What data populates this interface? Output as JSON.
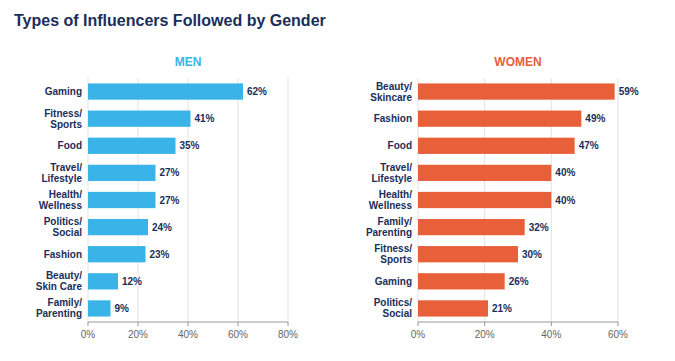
{
  "chart_data": [
    {
      "type": "bar",
      "orientation": "horizontal",
      "title": "Types of Influencers Followed by Gender",
      "subtitle": "MEN",
      "categories": [
        "Gaming",
        "Fitness/\nSports",
        "Food",
        "Travel/\nLifestyle",
        "Health/\nWellness",
        "Politics/\nSocial",
        "Fashion",
        "Beauty/\nSkin Care",
        "Family/\nParenting"
      ],
      "values": [
        62,
        41,
        35,
        27,
        27,
        24,
        23,
        12,
        9
      ],
      "value_labels": [
        "62%",
        "41%",
        "35%",
        "27%",
        "27%",
        "24%",
        "23%",
        "12%",
        "9%"
      ],
      "data_labels": true,
      "color": "#3ab4e8",
      "xlim": [
        0,
        80
      ],
      "xticks": [
        {
          "value": 0,
          "label": "0%"
        },
        {
          "value": 20,
          "label": "20%"
        },
        {
          "value": 40,
          "label": "40%"
        },
        {
          "value": 60,
          "label": "60%"
        },
        {
          "value": 80,
          "label": "80%"
        }
      ],
      "grid": true
    },
    {
      "type": "bar",
      "orientation": "horizontal",
      "subtitle": "WOMEN",
      "categories": [
        "Beauty/\nSkincare",
        "Fashion",
        "Food",
        "Travel/\nLifestyle",
        "Health/\nWellness",
        "Family/\nParenting",
        "Fitness/\nSports",
        "Gaming",
        "Politics/\nSocial"
      ],
      "values": [
        59,
        49,
        47,
        40,
        40,
        32,
        30,
        26,
        21
      ],
      "value_labels": [
        "59%",
        "49%",
        "47%",
        "40%",
        "40%",
        "32%",
        "30%",
        "26%",
        "21%"
      ],
      "data_labels": true,
      "color": "#e8603a",
      "xlim": [
        0,
        60
      ],
      "xticks": [
        {
          "value": 0,
          "label": "0%"
        },
        {
          "value": 20,
          "label": "20%"
        },
        {
          "value": 40,
          "label": "40%"
        },
        {
          "value": 60,
          "label": "60%"
        }
      ],
      "grid": true
    }
  ]
}
